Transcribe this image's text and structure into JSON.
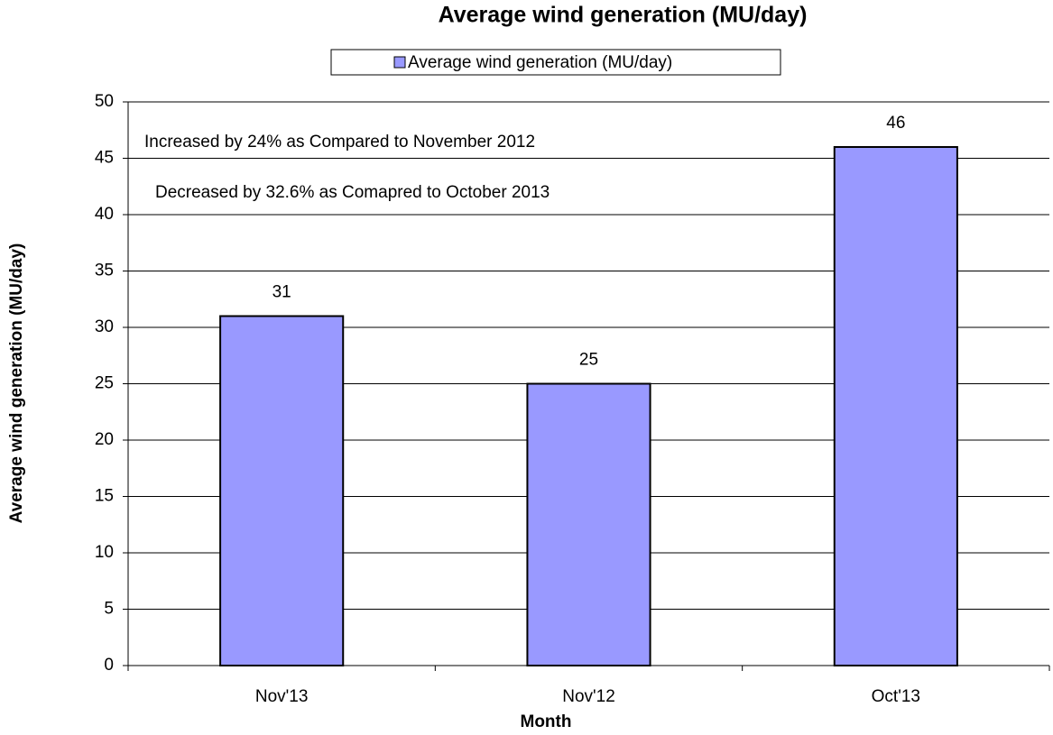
{
  "chart_data": {
    "type": "bar",
    "title": "Average wind generation (MU/day)",
    "x_label": "Month",
    "y_label": "Average wind generation (MU/day)",
    "categories": [
      "Nov'13",
      "Nov'12",
      "Oct'13"
    ],
    "series": [
      {
        "name": "Average wind generation (MU/day)",
        "color": "#9999ff",
        "values": [
          31,
          25,
          46
        ]
      }
    ],
    "annotations": [
      "Increased by 24% as Compared to November 2012",
      "Decreased by 32.6% as Comapred to October 2013"
    ],
    "ylim": [
      0,
      50
    ],
    "yticks": [
      0,
      5,
      10,
      15,
      20,
      25,
      30,
      35,
      40,
      45,
      50
    ],
    "grid": true,
    "legend": "top"
  }
}
